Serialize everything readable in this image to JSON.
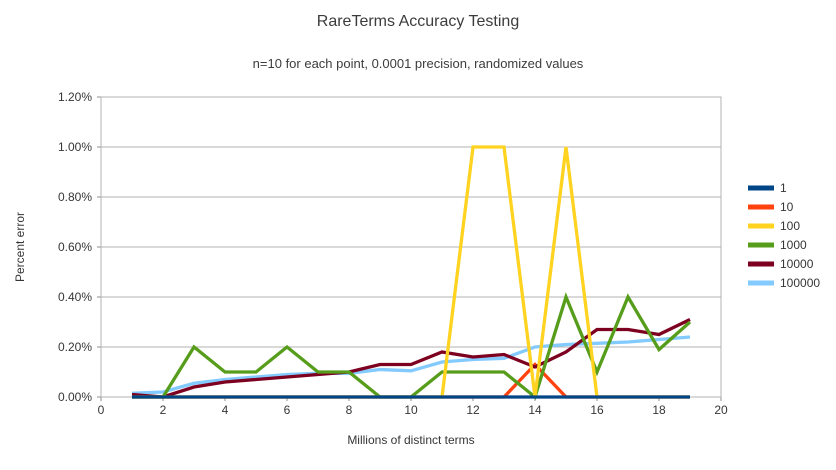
{
  "page": {
    "background": "#ffffff"
  },
  "chart_data": {
    "type": "line",
    "title": "RareTerms Accuracy Testing",
    "subtitle": "n=10 for each point, 0.0001 precision, randomized values",
    "xlabel": "Millions of distinct terms",
    "ylabel": "Percent error",
    "value_unit": "percent",
    "x": [
      1,
      2,
      3,
      4,
      5,
      6,
      7,
      8,
      9,
      10,
      11,
      12,
      13,
      14,
      15,
      16,
      17,
      18,
      19
    ],
    "xlim": [
      0,
      20
    ],
    "x_ticks": [
      0,
      2,
      4,
      6,
      8,
      10,
      12,
      14,
      16,
      18,
      20
    ],
    "x_tick_labels": [
      "0",
      "2",
      "4",
      "6",
      "8",
      "10",
      "12",
      "14",
      "16",
      "18",
      "20"
    ],
    "ylim": [
      0,
      1.2
    ],
    "y_ticks": [
      0,
      0.2,
      0.4,
      0.6,
      0.8,
      1.0,
      1.2
    ],
    "y_tick_labels": [
      "0.00%",
      "0.20%",
      "0.40%",
      "0.60%",
      "0.80%",
      "1.00%",
      "1.20%"
    ],
    "grid": true,
    "grid_color": "#b3b3b3",
    "legend_position": "right",
    "series": [
      {
        "name": "1",
        "color": "#004586",
        "values": [
          0,
          0,
          0,
          0,
          0,
          0,
          0,
          0,
          0,
          0,
          0,
          0,
          0,
          0,
          0,
          0,
          0,
          0,
          0
        ]
      },
      {
        "name": "10",
        "color": "#FF420E",
        "values": [
          0,
          0,
          0,
          0,
          0,
          0,
          0,
          0,
          0,
          0,
          0,
          0,
          0,
          0.13,
          0,
          0,
          0,
          0,
          0
        ]
      },
      {
        "name": "100",
        "color": "#FFD320",
        "values": [
          0,
          0,
          0,
          0,
          0,
          0,
          0,
          0,
          0,
          0,
          0,
          1.0,
          1.0,
          0,
          1.0,
          0,
          0,
          0,
          0
        ]
      },
      {
        "name": "1000",
        "color": "#579D1C",
        "values": [
          0,
          0,
          0.2,
          0.1,
          0.1,
          0.2,
          0.1,
          0.1,
          0,
          0,
          0.1,
          0.1,
          0.1,
          0,
          0.4,
          0.1,
          0.4,
          0.19,
          0.3
        ]
      },
      {
        "name": "10000",
        "color": "#7E0021",
        "values": [
          0.01,
          0,
          0.04,
          0.06,
          0.07,
          0.08,
          0.09,
          0.1,
          0.13,
          0.13,
          0.18,
          0.16,
          0.17,
          0.12,
          0.18,
          0.27,
          0.27,
          0.25,
          0.31
        ]
      },
      {
        "name": "100000",
        "color": "#83CAFF",
        "values": [
          0.015,
          0.02,
          0.055,
          0.07,
          0.08,
          0.09,
          0.095,
          0.095,
          0.11,
          0.105,
          0.14,
          0.15,
          0.155,
          0.2,
          0.21,
          0.215,
          0.22,
          0.23,
          0.24
        ]
      }
    ],
    "draw_order": [
      "10",
      "100000",
      "10000",
      "1000",
      "100",
      "1"
    ]
  }
}
